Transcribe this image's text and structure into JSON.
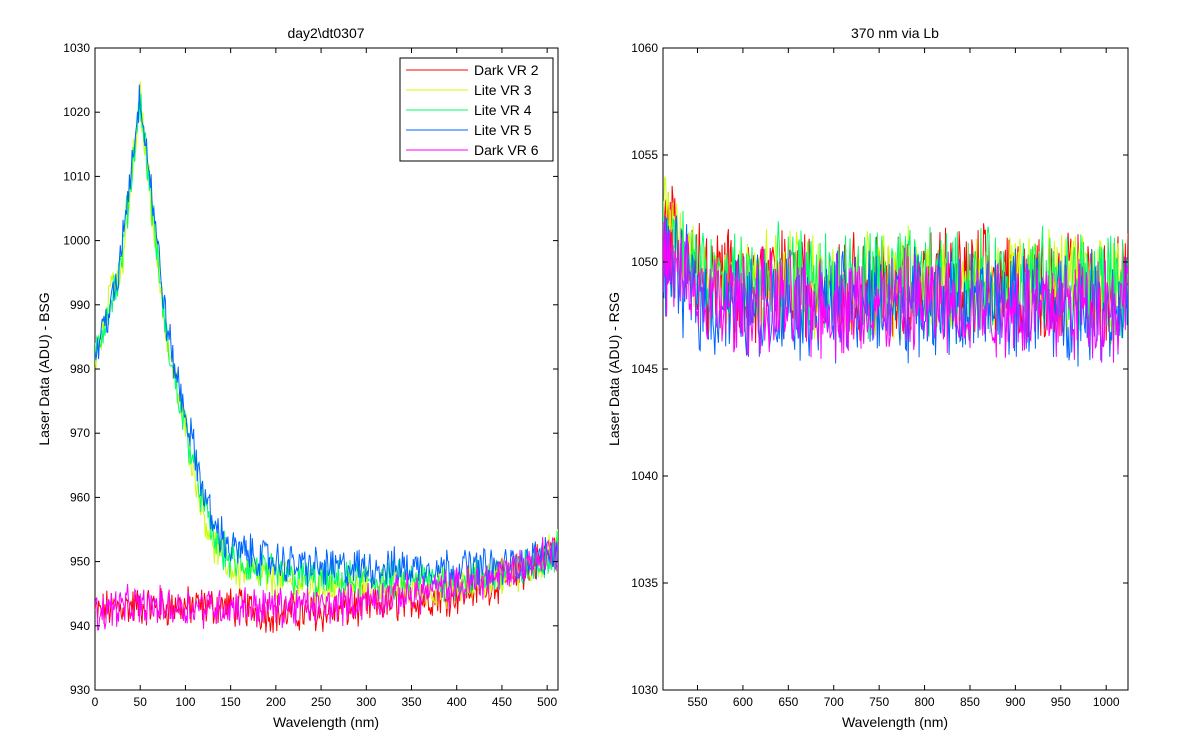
{
  "chart_data": [
    {
      "type": "line",
      "title": "day2\\dt0307",
      "xlabel": "Wavelength (nm)",
      "ylabel": "Laser Data (ADU) - BSG",
      "xlim": [
        0,
        512
      ],
      "ylim": [
        930,
        1030
      ],
      "x_ticks": [
        0,
        50,
        100,
        150,
        200,
        250,
        300,
        350,
        400,
        450,
        500
      ],
      "y_ticks": [
        930,
        940,
        950,
        960,
        970,
        980,
        990,
        1000,
        1010,
        1020,
        1030
      ],
      "grid": false,
      "legend_position": "top-right",
      "series": [
        {
          "name": "Dark VR 2",
          "color": "#ff0000",
          "points": [
            [
              0,
              942
            ],
            [
              25,
              943
            ],
            [
              50,
              943
            ],
            [
              75,
              943
            ],
            [
              100,
              943
            ],
            [
              150,
              943
            ],
            [
              200,
              942
            ],
            [
              250,
              942
            ],
            [
              300,
              943
            ],
            [
              350,
              944
            ],
            [
              400,
              945
            ],
            [
              450,
              947
            ],
            [
              480,
              949
            ],
            [
              512,
              952
            ]
          ]
        },
        {
          "name": "Lite VR 3",
          "color": "#ccff00",
          "points": [
            [
              0,
              981
            ],
            [
              10,
              988
            ],
            [
              20,
              995
            ],
            [
              25,
              992
            ],
            [
              30,
              996
            ],
            [
              50,
              1022
            ],
            [
              60,
              1009
            ],
            [
              70,
              996
            ],
            [
              80,
              984
            ],
            [
              90,
              977
            ],
            [
              100,
              971
            ],
            [
              110,
              964
            ],
            [
              120,
              958
            ],
            [
              130,
              953
            ],
            [
              150,
              949
            ],
            [
              200,
              947
            ],
            [
              250,
              946
            ],
            [
              300,
              946
            ],
            [
              350,
              946
            ],
            [
              400,
              946
            ],
            [
              450,
              948
            ],
            [
              480,
              949
            ],
            [
              512,
              952
            ]
          ]
        },
        {
          "name": "Lite VR 4",
          "color": "#00ff66",
          "points": [
            [
              0,
              982
            ],
            [
              10,
              987
            ],
            [
              20,
              992
            ],
            [
              25,
              993
            ],
            [
              30,
              998
            ],
            [
              50,
              1022
            ],
            [
              60,
              1009
            ],
            [
              70,
              996
            ],
            [
              80,
              984
            ],
            [
              90,
              977
            ],
            [
              100,
              971
            ],
            [
              110,
              965
            ],
            [
              120,
              959
            ],
            [
              130,
              954
            ],
            [
              150,
              950
            ],
            [
              200,
              948
            ],
            [
              250,
              947
            ],
            [
              300,
              947
            ],
            [
              350,
              947
            ],
            [
              400,
              947
            ],
            [
              450,
              948
            ],
            [
              480,
              949
            ],
            [
              512,
              952
            ]
          ]
        },
        {
          "name": "Lite VR 5",
          "color": "#0066ff",
          "points": [
            [
              0,
              982
            ],
            [
              10,
              987
            ],
            [
              20,
              991
            ],
            [
              25,
              993
            ],
            [
              30,
              1000
            ],
            [
              50,
              1023
            ],
            [
              60,
              1011
            ],
            [
              70,
              998
            ],
            [
              80,
              986
            ],
            [
              90,
              979
            ],
            [
              100,
              973
            ],
            [
              110,
              967
            ],
            [
              120,
              961
            ],
            [
              130,
              956
            ],
            [
              150,
              952
            ],
            [
              200,
              950
            ],
            [
              250,
              949
            ],
            [
              300,
              949
            ],
            [
              350,
              949
            ],
            [
              400,
              949
            ],
            [
              450,
              949
            ],
            [
              480,
              950
            ],
            [
              512,
              952
            ]
          ]
        },
        {
          "name": "Dark VR 6",
          "color": "#ff00ff",
          "points": [
            [
              0,
              942
            ],
            [
              25,
              943
            ],
            [
              50,
              943
            ],
            [
              75,
              943
            ],
            [
              100,
              943
            ],
            [
              150,
              943
            ],
            [
              200,
              943
            ],
            [
              250,
              943
            ],
            [
              300,
              944
            ],
            [
              350,
              945
            ],
            [
              400,
              946
            ],
            [
              450,
              948
            ],
            [
              480,
              950
            ],
            [
              512,
              952
            ]
          ]
        }
      ]
    },
    {
      "type": "line",
      "title": "370 nm via Lb",
      "xlabel": "Wavelength (nm)",
      "ylabel": "Laser Data (ADU) - RSG",
      "xlim": [
        512,
        1024
      ],
      "ylim": [
        1030,
        1060
      ],
      "x_ticks": [
        550,
        600,
        650,
        700,
        750,
        800,
        850,
        900,
        950,
        1000
      ],
      "y_ticks": [
        1030,
        1035,
        1040,
        1045,
        1050,
        1055,
        1060
      ],
      "grid": false,
      "series": [
        {
          "color": "#ff0000",
          "points": [
            [
              512,
              1052
            ],
            [
              560,
              1049
            ],
            [
              650,
              1049
            ],
            [
              750,
              1049
            ],
            [
              850,
              1049
            ],
            [
              950,
              1049
            ],
            [
              1024,
              1049
            ]
          ]
        },
        {
          "color": "#ccff00",
          "points": [
            [
              512,
              1052
            ],
            [
              560,
              1049
            ],
            [
              650,
              1049
            ],
            [
              750,
              1049
            ],
            [
              850,
              1049
            ],
            [
              950,
              1049
            ],
            [
              1024,
              1049
            ]
          ]
        },
        {
          "color": "#00ff66",
          "points": [
            [
              512,
              1051
            ],
            [
              560,
              1049
            ],
            [
              650,
              1049
            ],
            [
              750,
              1049
            ],
            [
              850,
              1049
            ],
            [
              950,
              1049
            ],
            [
              1024,
              1049
            ]
          ]
        },
        {
          "color": "#0066ff",
          "points": [
            [
              512,
              1050
            ],
            [
              560,
              1048
            ],
            [
              650,
              1048
            ],
            [
              750,
              1048
            ],
            [
              850,
              1048
            ],
            [
              950,
              1048
            ],
            [
              1024,
              1048
            ]
          ]
        },
        {
          "color": "#ff00ff",
          "points": [
            [
              512,
              1050
            ],
            [
              560,
              1048
            ],
            [
              650,
              1048
            ],
            [
              750,
              1048
            ],
            [
              850,
              1048
            ],
            [
              950,
              1048
            ],
            [
              1024,
              1048
            ]
          ]
        }
      ]
    }
  ]
}
